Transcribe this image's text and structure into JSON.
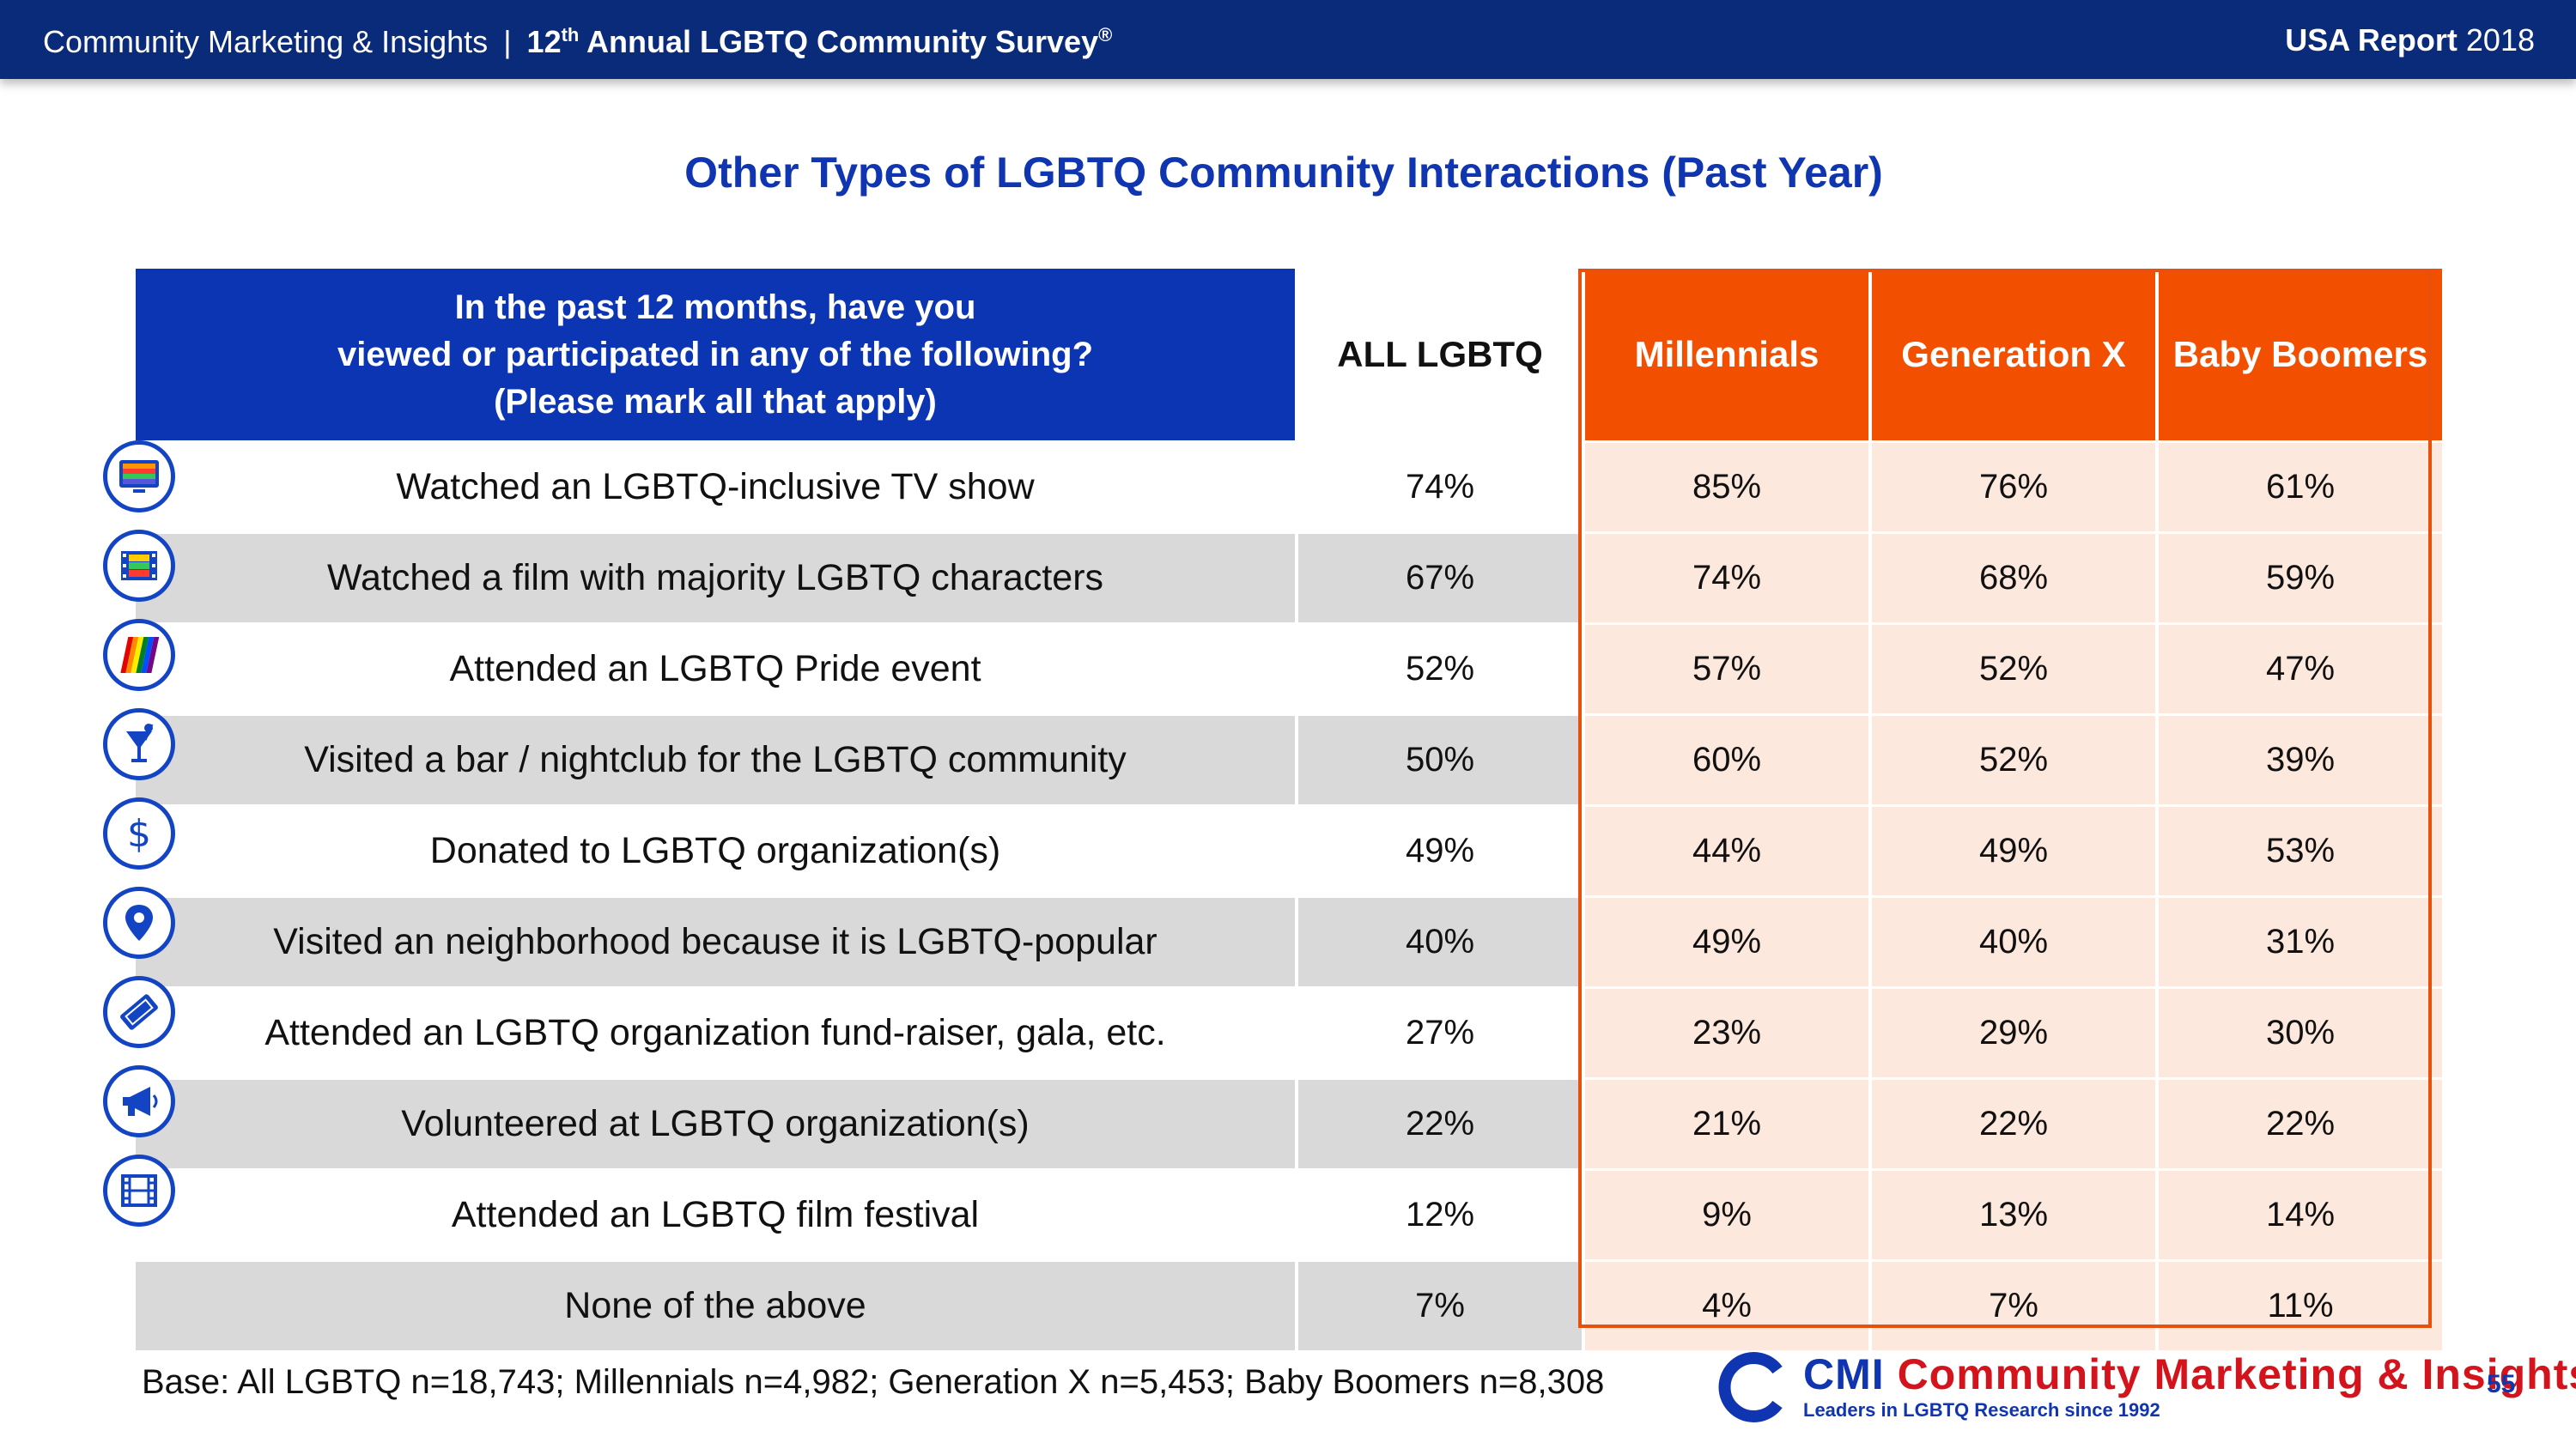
{
  "header": {
    "left_text": "Community Marketing & Insights",
    "separator": "|",
    "survey_ordinal": "12",
    "survey_ordinal_suffix": "th",
    "survey_title": "Annual LGBTQ Community Survey",
    "registered": "®",
    "report_bold": "USA Report",
    "report_year": "2018"
  },
  "title": "Other Types of LGBTQ Community Interactions (Past Year)",
  "table": {
    "question_lines": [
      "In the past 12 months, have you",
      "viewed or participated in any of the following?",
      "(Please mark all that apply)"
    ],
    "columns": [
      "ALL LGBTQ",
      "Millennials",
      "Generation X",
      "Baby Boomers"
    ],
    "rows": [
      {
        "icon": "tv-icon",
        "label": "Watched an LGBTQ-inclusive TV show",
        "values": [
          "74%",
          "85%",
          "76%",
          "61%"
        ]
      },
      {
        "icon": "film-strip-icon",
        "label": "Watched a film with majority LGBTQ characters",
        "values": [
          "67%",
          "74%",
          "68%",
          "59%"
        ]
      },
      {
        "icon": "rainbow-flag-icon",
        "label": "Attended an LGBTQ Pride event",
        "values": [
          "52%",
          "57%",
          "52%",
          "47%"
        ]
      },
      {
        "icon": "cocktail-icon",
        "label": "Visited a bar / nightclub for the LGBTQ community",
        "values": [
          "50%",
          "60%",
          "52%",
          "39%"
        ]
      },
      {
        "icon": "dollar-icon",
        "label": "Donated to LGBTQ organization(s)",
        "values": [
          "49%",
          "44%",
          "49%",
          "53%"
        ]
      },
      {
        "icon": "map-pin-icon",
        "label": "Visited an neighborhood because it is LGBTQ-popular",
        "values": [
          "40%",
          "49%",
          "40%",
          "31%"
        ]
      },
      {
        "icon": "ticket-icon",
        "label": "Attended an LGBTQ organization fund-raiser, gala, etc.",
        "values": [
          "27%",
          "23%",
          "29%",
          "30%"
        ]
      },
      {
        "icon": "megaphone-icon",
        "label": "Volunteered at LGBTQ organization(s)",
        "values": [
          "22%",
          "21%",
          "22%",
          "22%"
        ]
      },
      {
        "icon": "film-icon",
        "label": "Attended an LGBTQ film festival",
        "values": [
          "12%",
          "9%",
          "13%",
          "14%"
        ]
      },
      {
        "icon": "",
        "label": "None of the above",
        "values": [
          "7%",
          "4%",
          "7%",
          "11%"
        ]
      }
    ]
  },
  "footer": {
    "base": "Base: All LGBTQ n=18,743; Millennials n=4,982; Generation X n=5,453; Baby Boomers n=8,308",
    "logo_abbr": "CMI",
    "logo_name": "Community Marketing & Insights",
    "logo_tagline": "Leaders in LGBTQ Research since 1992",
    "page_number": "55"
  },
  "colors": {
    "navy": "#0a2a7a",
    "blue": "#0c35b3",
    "orange": "#f24f00",
    "peach": "#fde8dd",
    "grey": "#d9d9d9"
  }
}
